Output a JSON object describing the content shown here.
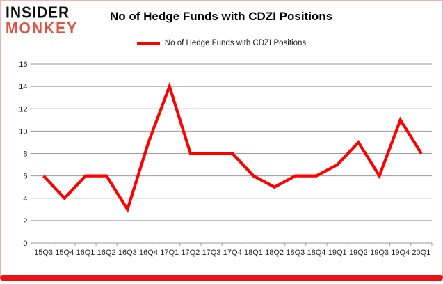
{
  "brand": {
    "line1": "INSIDER",
    "line2": "MONKEY",
    "red": "#df5240"
  },
  "header": {
    "title": "No of Hedge Funds with CDZI Positions"
  },
  "legend": {
    "label": "No of Hedge Funds with CDZI Positions"
  },
  "chart_data": {
    "type": "line",
    "title": "No of Hedge Funds with CDZI Positions",
    "categories": [
      "15Q3",
      "15Q4",
      "16Q1",
      "16Q2",
      "16Q3",
      "16Q4",
      "17Q1",
      "17Q2",
      "17Q3",
      "17Q4",
      "18Q1",
      "18Q2",
      "18Q3",
      "18Q4",
      "19Q1",
      "19Q2",
      "19Q3",
      "19Q4",
      "20Q1"
    ],
    "series": [
      {
        "name": "No of Hedge Funds with CDZI Positions",
        "values": [
          6,
          4,
          6,
          6,
          3,
          9,
          14,
          8,
          8,
          8,
          6,
          5,
          6,
          6,
          7,
          9,
          6,
          11,
          8
        ]
      }
    ],
    "xlabel": "",
    "ylabel": "",
    "ylim": [
      0,
      16
    ],
    "ytick_step": 2,
    "grid": "horizontal",
    "legend_position": "top-center",
    "colors": {
      "line": "#fe0000",
      "grid": "#9b9b9b",
      "axis": "#9b9b9b",
      "text": "#262626",
      "frame_border": "#f0b2ae",
      "bottom_bar": "#ea1212"
    }
  }
}
